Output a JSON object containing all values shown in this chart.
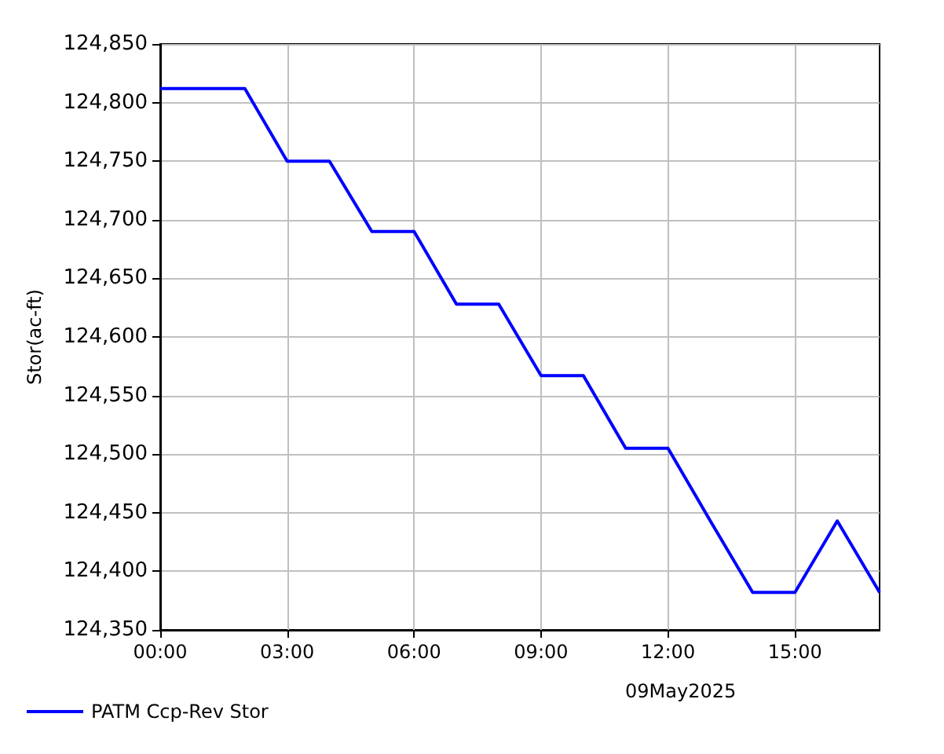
{
  "chart_data": {
    "type": "line",
    "ylabel": "Stor(ac-ft)",
    "x": [
      0,
      1,
      2,
      3,
      4,
      5,
      6,
      7,
      8,
      9,
      10,
      11,
      12,
      13,
      14,
      15,
      16,
      17
    ],
    "series": [
      {
        "name": "PATM Ccp-Rev Stor",
        "color": "#0000ff",
        "values": [
          124812,
          124812,
          124812,
          124750,
          124750,
          124690,
          124690,
          124628,
          124628,
          124567,
          124567,
          124505,
          124505,
          124443,
          124382,
          124382,
          124443,
          124382
        ]
      }
    ],
    "xlim": [
      0,
      17
    ],
    "xticks": [
      {
        "value": 0,
        "label": "00:00"
      },
      {
        "value": 3,
        "label": "03:00"
      },
      {
        "value": 6,
        "label": "06:00"
      },
      {
        "value": 9,
        "label": "09:00"
      },
      {
        "value": 12,
        "label": "12:00"
      },
      {
        "value": 15,
        "label": "15:00"
      }
    ],
    "ylim": [
      124350,
      124850
    ],
    "yticks": [
      {
        "value": 124350,
        "label": "124,350"
      },
      {
        "value": 124400,
        "label": "124,400"
      },
      {
        "value": 124450,
        "label": "124,450"
      },
      {
        "value": 124500,
        "label": "124,500"
      },
      {
        "value": 124550,
        "label": "124,550"
      },
      {
        "value": 124600,
        "label": "124,600"
      },
      {
        "value": 124650,
        "label": "124,650"
      },
      {
        "value": 124700,
        "label": "124,700"
      },
      {
        "value": 124750,
        "label": "124,750"
      },
      {
        "value": 124800,
        "label": "124,800"
      },
      {
        "value": 124850,
        "label": "124,850"
      }
    ],
    "annotations": [
      "09May2025"
    ],
    "grid": true,
    "legend": "bottom left",
    "marker": "none",
    "line_style": "solid"
  }
}
